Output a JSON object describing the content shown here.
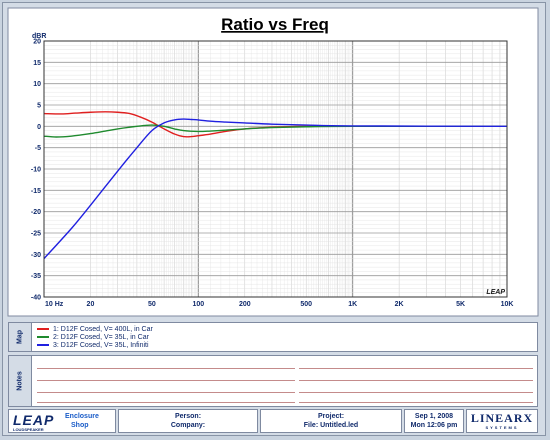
{
  "header": {
    "title": "Ratio vs Freq"
  },
  "chart_data": {
    "type": "line",
    "title": "Ratio vs Freq",
    "ylabel": "dBR",
    "x_scale": "log",
    "xlim": [
      10,
      10000
    ],
    "ylim": [
      -40,
      20
    ],
    "x_ticks": [
      10,
      20,
      50,
      100,
      200,
      500,
      1000,
      2000,
      5000,
      10000
    ],
    "x_tick_labels": [
      "10 Hz",
      "20",
      "50",
      "100",
      "200",
      "500",
      "1K",
      "2K",
      "5K",
      "10K"
    ],
    "y_ticks": [
      20,
      15,
      10,
      5,
      0,
      -5,
      -10,
      -15,
      -20,
      -25,
      -30,
      -35,
      -40
    ],
    "grid": true,
    "legend_position": "bottom panel",
    "series": [
      {
        "name": "1: D12F Cosed, V= 400L, in Car",
        "color": "#e02020",
        "points": [
          [
            10,
            3.0
          ],
          [
            13,
            2.9
          ],
          [
            16,
            3.1
          ],
          [
            20,
            3.3
          ],
          [
            25,
            3.4
          ],
          [
            30,
            3.3
          ],
          [
            36,
            3.0
          ],
          [
            42,
            2.2
          ],
          [
            50,
            1.0
          ],
          [
            60,
            -0.6
          ],
          [
            70,
            -1.8
          ],
          [
            80,
            -2.4
          ],
          [
            90,
            -2.4
          ],
          [
            100,
            -2.2
          ],
          [
            120,
            -1.8
          ],
          [
            150,
            -1.2
          ],
          [
            200,
            -0.6
          ],
          [
            300,
            -0.2
          ],
          [
            500,
            0.0
          ],
          [
            1000,
            0.0
          ],
          [
            10000,
            0.0
          ]
        ]
      },
      {
        "name": "2: D12F Cosed, V= 35L, in Car",
        "color": "#1f8a2e",
        "points": [
          [
            10,
            -2.3
          ],
          [
            12,
            -2.5
          ],
          [
            15,
            -2.3
          ],
          [
            20,
            -1.7
          ],
          [
            25,
            -1.1
          ],
          [
            30,
            -0.6
          ],
          [
            40,
            0.0
          ],
          [
            50,
            0.3
          ],
          [
            60,
            0.0
          ],
          [
            70,
            -0.6
          ],
          [
            80,
            -1.0
          ],
          [
            100,
            -1.2
          ],
          [
            120,
            -1.1
          ],
          [
            150,
            -0.9
          ],
          [
            200,
            -0.6
          ],
          [
            300,
            -0.3
          ],
          [
            500,
            -0.1
          ],
          [
            1000,
            0.0
          ],
          [
            10000,
            0.0
          ]
        ]
      },
      {
        "name": "3: D12F Cosed, V= 35L, Infiniti",
        "color": "#2020e0",
        "points": [
          [
            10,
            -31.0
          ],
          [
            15,
            -24.0
          ],
          [
            20,
            -18.5
          ],
          [
            30,
            -10.5
          ],
          [
            40,
            -5.0
          ],
          [
            50,
            -1.0
          ],
          [
            60,
            0.8
          ],
          [
            70,
            1.5
          ],
          [
            80,
            1.7
          ],
          [
            90,
            1.6
          ],
          [
            100,
            1.5
          ],
          [
            120,
            1.2
          ],
          [
            150,
            1.0
          ],
          [
            200,
            0.8
          ],
          [
            300,
            0.5
          ],
          [
            500,
            0.3
          ],
          [
            1000,
            0.1
          ],
          [
            10000,
            0.0
          ]
        ]
      }
    ]
  },
  "watermark": "LEAP",
  "map_panel": {
    "tab_label": "Map",
    "legend": [
      {
        "label": "1: D12F Cosed, V= 400L, in Car",
        "color": "#e02020"
      },
      {
        "label": "2: D12F Cosed, V= 35L, in Car",
        "color": "#1f8a2e"
      },
      {
        "label": "3: D12F Cosed, V= 35L, Infiniti",
        "color": "#2020e0"
      }
    ]
  },
  "notes_panel": {
    "tab_label": "Notes"
  },
  "footer": {
    "logo": "LEAP",
    "logo_sub": "LOUDSPEAKER",
    "product_line1": "Enclosure",
    "product_line2": "Shop",
    "person_label": "Person:",
    "company_label": "Company:",
    "project_label": "Project:",
    "file_label": "File: Untitled.led",
    "date": "Sep  1, 2008",
    "time": "Mon 12:06 pm",
    "brand": "LINEARX",
    "brand_sub": "SYSTEMS"
  }
}
